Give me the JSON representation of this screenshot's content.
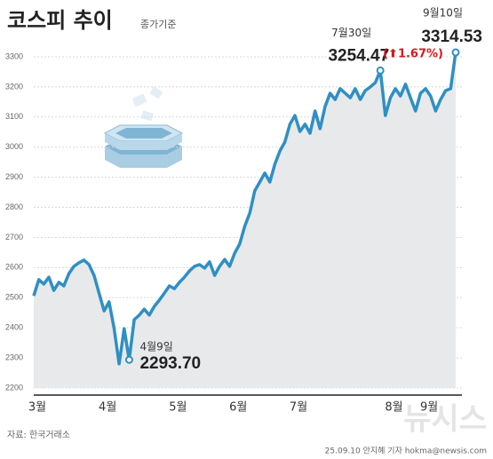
{
  "chart_data": {
    "type": "line",
    "title": "코스피 추이",
    "subtitle": "종가기준",
    "source": "자료: 한국거래소",
    "credit": "25.09.10 안지혜 기자 hokma@newsis.com",
    "watermark": "뉴시스",
    "change_label": "(⬆1.67%)",
    "categories": [
      "3월",
      null,
      null,
      null,
      null,
      null,
      null,
      null,
      null,
      null,
      null,
      null,
      null,
      null,
      "4월",
      null,
      null,
      null,
      null,
      null,
      null,
      null,
      null,
      null,
      null,
      null,
      null,
      null,
      "5월",
      null,
      null,
      null,
      null,
      null,
      null,
      null,
      null,
      null,
      null,
      null,
      "6월",
      null,
      null,
      null,
      null,
      null,
      null,
      null,
      null,
      null,
      null,
      null,
      "7월",
      null,
      null,
      null,
      null,
      null,
      null,
      null,
      null,
      null,
      null,
      null,
      null,
      null,
      null,
      null,
      null,
      null,
      null,
      "8월",
      null,
      null,
      null,
      null,
      null,
      null,
      "9월",
      null,
      null,
      null,
      null,
      null,
      null
    ],
    "series": [
      {
        "name": "코스피",
        "color": "#2f8fc4",
        "values": [
          2506,
          2560,
          2545,
          2568,
          2524,
          2551,
          2539,
          2580,
          2604,
          2616,
          2625,
          2610,
          2574,
          2515,
          2456,
          2486,
          2397,
          2280,
          2397,
          2293.7,
          2427,
          2442,
          2462,
          2442,
          2471,
          2492,
          2515,
          2539,
          2530,
          2551,
          2568,
          2589,
          2604,
          2610,
          2598,
          2619,
          2574,
          2604,
          2627,
          2604,
          2648,
          2678,
          2737,
          2781,
          2855,
          2884,
          2914,
          2884,
          2943,
          2987,
          3017,
          3076,
          3105,
          3052,
          3076,
          3046,
          3120,
          3061,
          3135,
          3179,
          3158,
          3194,
          3179,
          3164,
          3194,
          3158,
          3188,
          3200,
          3214,
          3254.47,
          3105,
          3164,
          3194,
          3170,
          3209,
          3164,
          3120,
          3179,
          3194,
          3170,
          3120,
          3158,
          3188,
          3194,
          3314.53
        ],
        "value_labels": [
          null,
          null,
          null,
          null,
          null,
          null,
          null,
          null,
          null,
          null,
          null,
          null,
          null,
          null,
          null,
          null,
          null,
          null,
          null,
          "2293.70",
          null,
          null,
          null,
          null,
          null,
          null,
          null,
          null,
          null,
          null,
          null,
          null,
          null,
          null,
          null,
          null,
          null,
          null,
          null,
          null,
          null,
          null,
          null,
          null,
          null,
          null,
          null,
          null,
          null,
          null,
          null,
          null,
          null,
          null,
          null,
          null,
          null,
          null,
          null,
          null,
          null,
          null,
          null,
          null,
          null,
          null,
          null,
          null,
          null,
          "3254.47",
          null,
          null,
          null,
          null,
          null,
          null,
          null,
          null,
          null,
          null,
          null,
          null,
          null,
          null,
          "3314.53"
        ],
        "date_labels": [
          null,
          null,
          null,
          null,
          null,
          null,
          null,
          null,
          null,
          null,
          null,
          null,
          null,
          null,
          null,
          null,
          null,
          null,
          null,
          "4월9일",
          null,
          null,
          null,
          null,
          null,
          null,
          null,
          null,
          null,
          null,
          null,
          null,
          null,
          null,
          null,
          null,
          null,
          null,
          null,
          null,
          null,
          null,
          null,
          null,
          null,
          null,
          null,
          null,
          null,
          null,
          null,
          null,
          null,
          null,
          null,
          null,
          null,
          null,
          null,
          null,
          null,
          null,
          null,
          null,
          null,
          null,
          null,
          null,
          null,
          "7월30일",
          null,
          null,
          null,
          null,
          null,
          null,
          null,
          null,
          null,
          null,
          null,
          null,
          null,
          null,
          "9월10일"
        ]
      }
    ],
    "ylim": [
      2200,
      3330
    ],
    "yticks": [
      2200,
      2300,
      2400,
      2500,
      2600,
      2700,
      2800,
      2900,
      3000,
      3100,
      3200,
      3300
    ],
    "grid": true
  }
}
